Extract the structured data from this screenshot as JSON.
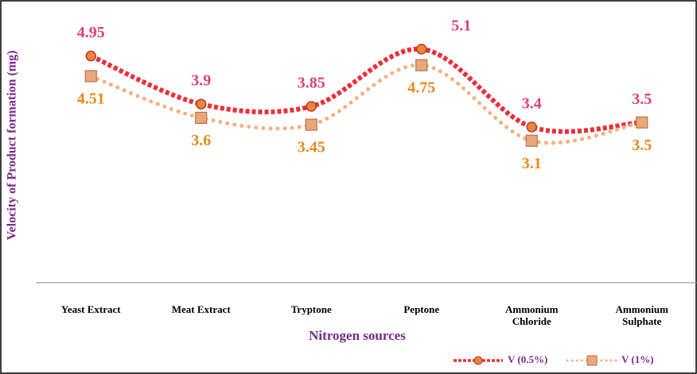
{
  "chart_data": {
    "type": "line",
    "x_label": "Nitrogen sources",
    "y_label": "Velocity of Product formation (mg)",
    "categories": [
      "Yeast Extract",
      "Meat Extract",
      "Tryptone",
      "Peptone",
      "Ammonium Chloride",
      "Ammonium Sulphate"
    ],
    "series": [
      {
        "name": "V (0.5%)",
        "color": "#e8303a",
        "label_color": "#e0407a",
        "values": [
          4.95,
          3.9,
          3.85,
          5.1,
          3.4,
          3.5
        ]
      },
      {
        "name": "V (1%)",
        "color": "#f4b183",
        "label_color": "#e8891c",
        "values": [
          4.51,
          3.6,
          3.45,
          4.75,
          3.1,
          3.5
        ]
      }
    ],
    "ylim": [
      0,
      6
    ],
    "grid": false,
    "legend": "bottom-right"
  }
}
